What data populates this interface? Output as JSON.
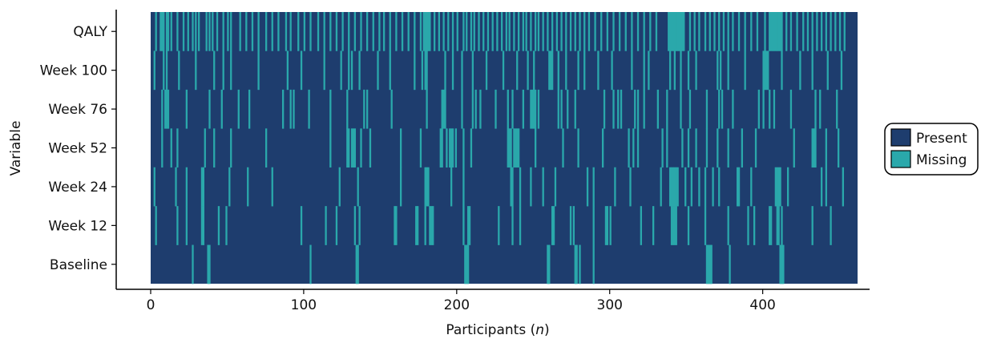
{
  "chart_data": {
    "type": "heatmap",
    "title": "",
    "xlabel": "Participants (",
    "xlabel_italic": "n",
    "xlabel_suffix": ")",
    "ylabel": "Variable",
    "xlim": [
      0,
      462
    ],
    "xticks": [
      0,
      100,
      200,
      300,
      400
    ],
    "rows": [
      "Baseline",
      "Week 12",
      "Week 24",
      "Week 52",
      "Week 76",
      "Week 100",
      "QALY"
    ],
    "n_participants": 462,
    "legend": {
      "placement": "right",
      "entries": [
        {
          "label": "Present",
          "color": "#1e3d6e"
        },
        {
          "label": "Missing",
          "color": "#2aa8ab"
        }
      ]
    },
    "missing": {
      "Baseline": [
        27,
        37,
        38,
        104,
        134,
        135,
        205,
        206,
        207,
        259,
        260,
        277,
        278,
        280,
        289,
        363,
        364,
        365,
        366,
        378,
        411,
        412,
        413
      ],
      "Week 12": [
        3,
        17,
        23,
        33,
        34,
        44,
        49,
        98,
        114,
        121,
        133,
        136,
        159,
        160,
        173,
        174,
        179,
        182,
        183,
        184,
        204,
        207,
        208,
        227,
        236,
        241,
        262,
        263,
        274,
        276,
        289,
        297,
        298,
        300,
        320,
        328,
        340,
        341,
        342,
        343,
        351,
        362,
        377,
        390,
        394,
        404,
        405,
        409,
        410,
        412,
        432,
        444
      ],
      "Week 24": [
        2,
        16,
        23,
        33,
        34,
        51,
        63,
        79,
        123,
        135,
        163,
        179,
        180,
        181,
        196,
        204,
        235,
        236,
        241,
        248,
        256,
        264,
        285,
        289,
        303,
        313,
        333,
        339,
        340,
        341,
        342,
        343,
        344,
        349,
        353,
        358,
        362,
        367,
        371,
        383,
        384,
        392,
        408,
        409,
        410,
        411,
        416,
        438,
        441,
        452
      ],
      "Week 52": [
        7,
        13,
        17,
        35,
        41,
        52,
        75,
        117,
        128,
        129,
        131,
        132,
        133,
        137,
        143,
        163,
        176,
        189,
        190,
        193,
        195,
        196,
        197,
        199,
        204,
        209,
        233,
        234,
        235,
        237,
        238,
        239,
        240,
        251,
        269,
        279,
        295,
        312,
        315,
        318,
        334,
        337,
        347,
        351,
        356,
        363,
        370,
        377,
        386,
        395,
        420,
        432,
        433,
        434,
        441,
        449
      ],
      "Week 76": [
        7,
        9,
        10,
        11,
        23,
        38,
        46,
        57,
        64,
        86,
        91,
        93,
        103,
        117,
        128,
        139,
        141,
        157,
        180,
        190,
        191,
        192,
        203,
        210,
        212,
        215,
        225,
        233,
        236,
        243,
        248,
        249,
        250,
        251,
        253,
        266,
        268,
        272,
        277,
        296,
        302,
        305,
        307,
        316,
        318,
        322,
        331,
        337,
        346,
        352,
        363,
        371,
        373,
        380,
        397,
        400,
        404,
        407,
        418,
        434,
        437,
        448
      ],
      "Week 100": [
        2,
        8,
        10,
        18,
        29,
        41,
        47,
        52,
        70,
        89,
        98,
        113,
        124,
        129,
        131,
        136,
        148,
        156,
        172,
        177,
        179,
        180,
        192,
        197,
        203,
        210,
        219,
        230,
        239,
        246,
        250,
        260,
        261,
        262,
        266,
        271,
        279,
        283,
        292,
        301,
        314,
        322,
        325,
        339,
        342,
        346,
        351,
        356,
        370,
        372,
        377,
        388,
        400,
        401,
        402,
        403,
        412,
        424,
        432,
        442,
        451
      ],
      "QALY": [
        3,
        6,
        7,
        8,
        10,
        11,
        13,
        17,
        21,
        24,
        27,
        29,
        31,
        36,
        38,
        40,
        43,
        47,
        50,
        52,
        58,
        62,
        66,
        70,
        75,
        79,
        83,
        88,
        91,
        96,
        100,
        104,
        109,
        113,
        117,
        121,
        125,
        129,
        133,
        137,
        141,
        145,
        149,
        152,
        156,
        160,
        164,
        168,
        172,
        176,
        178,
        179,
        180,
        181,
        182,
        185,
        188,
        191,
        194,
        197,
        200,
        204,
        206,
        209,
        211,
        214,
        217,
        220,
        223,
        226,
        229,
        232,
        234,
        237,
        240,
        243,
        245,
        248,
        251,
        253,
        256,
        259,
        262,
        265,
        268,
        271,
        274,
        277,
        280,
        283,
        286,
        290,
        294,
        298,
        302,
        306,
        310,
        314,
        318,
        322,
        326,
        330,
        338,
        339,
        340,
        341,
        342,
        343,
        344,
        345,
        346,
        347,
        348,
        352,
        355,
        358,
        362,
        365,
        368,
        371,
        374,
        377,
        380,
        384,
        388,
        392,
        396,
        401,
        404,
        405,
        406,
        407,
        408,
        409,
        410,
        411,
        412,
        415,
        418,
        422,
        426,
        429,
        432,
        435,
        438,
        441,
        444,
        447,
        450,
        453
      ]
    }
  }
}
